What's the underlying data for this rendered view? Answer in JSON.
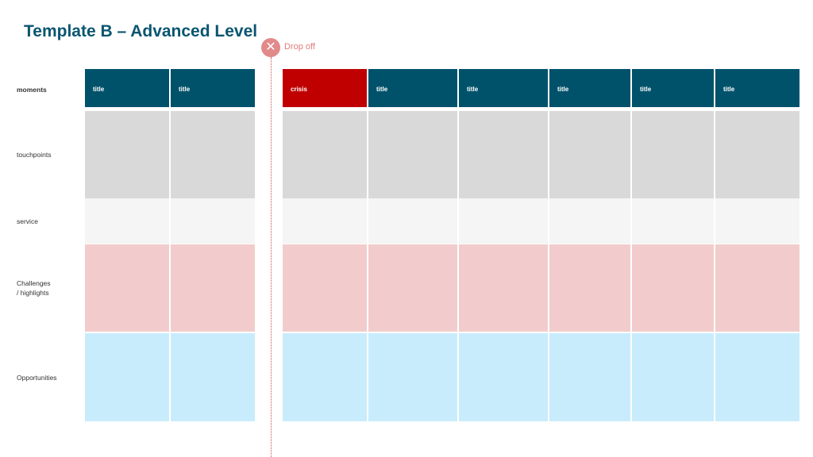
{
  "title": "Template B – Advanced Level",
  "dropoff": {
    "icon": "close-icon",
    "label": "Drop off"
  },
  "rows": {
    "moments": "moments",
    "touchpoints": "touchpoints",
    "service": "service",
    "challenges_line1": "Challenges",
    "challenges_line2": "/ highlights",
    "opportunities": "Opportunities"
  },
  "moments": {
    "before_dropoff": [
      "title",
      "title"
    ],
    "after_dropoff": [
      "crisis",
      "title",
      "title",
      "title",
      "title",
      "title"
    ]
  },
  "colors": {
    "header": "#00526b",
    "crisis": "#c00000",
    "touchpoints": "#d9d9d9",
    "service": "#f5f5f5",
    "challenges": "#f2cccc",
    "opportunities": "#c8ecfc",
    "dropoff": "#e18a8a"
  }
}
